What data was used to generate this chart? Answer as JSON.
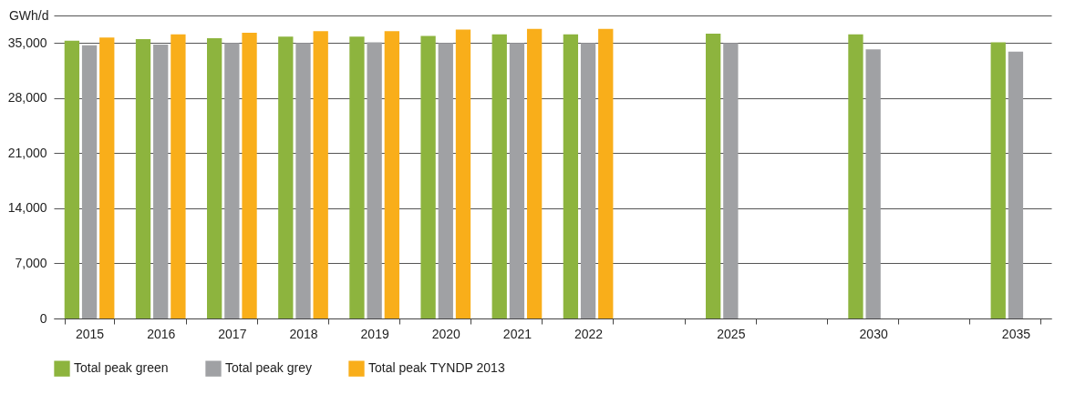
{
  "chart_data": {
    "type": "bar",
    "ylabel": "GWh/d",
    "categories": [
      "2015",
      "2016",
      "2017",
      "2018",
      "2019",
      "2020",
      "2021",
      "2022",
      null,
      "2025",
      null,
      "2030",
      null,
      "2035"
    ],
    "series": [
      {
        "name": "Total peak green",
        "color": "#8db43e",
        "values": [
          35300,
          35500,
          35600,
          35800,
          35800,
          35900,
          36100,
          36100,
          null,
          36200,
          null,
          36100,
          null,
          35100
        ]
      },
      {
        "name": "Total peak grey",
        "color": "#a0a1a4",
        "values": [
          34700,
          34800,
          35000,
          35000,
          35100,
          35000,
          35000,
          35000,
          null,
          35000,
          null,
          34200,
          null,
          33900
        ]
      },
      {
        "name": "Total peak TYNDP 2013",
        "color": "#f9ae1a",
        "values": [
          35700,
          36100,
          36300,
          36500,
          36500,
          36700,
          36800,
          36800,
          null,
          null,
          null,
          null,
          null,
          null
        ]
      }
    ],
    "ylim": [
      0,
      38500
    ],
    "yticks": [
      0,
      {
        "value": 7000,
        "label": "7,000"
      },
      {
        "value": 14000,
        "label": "14,000"
      },
      {
        "value": 21000,
        "label": "21,000"
      },
      {
        "value": 28000,
        "label": "28,000"
      },
      {
        "value": 35000,
        "label": "35,000"
      },
      {
        "value": 38500,
        "label": null
      }
    ],
    "grid": "y",
    "legend": "bottom left"
  }
}
